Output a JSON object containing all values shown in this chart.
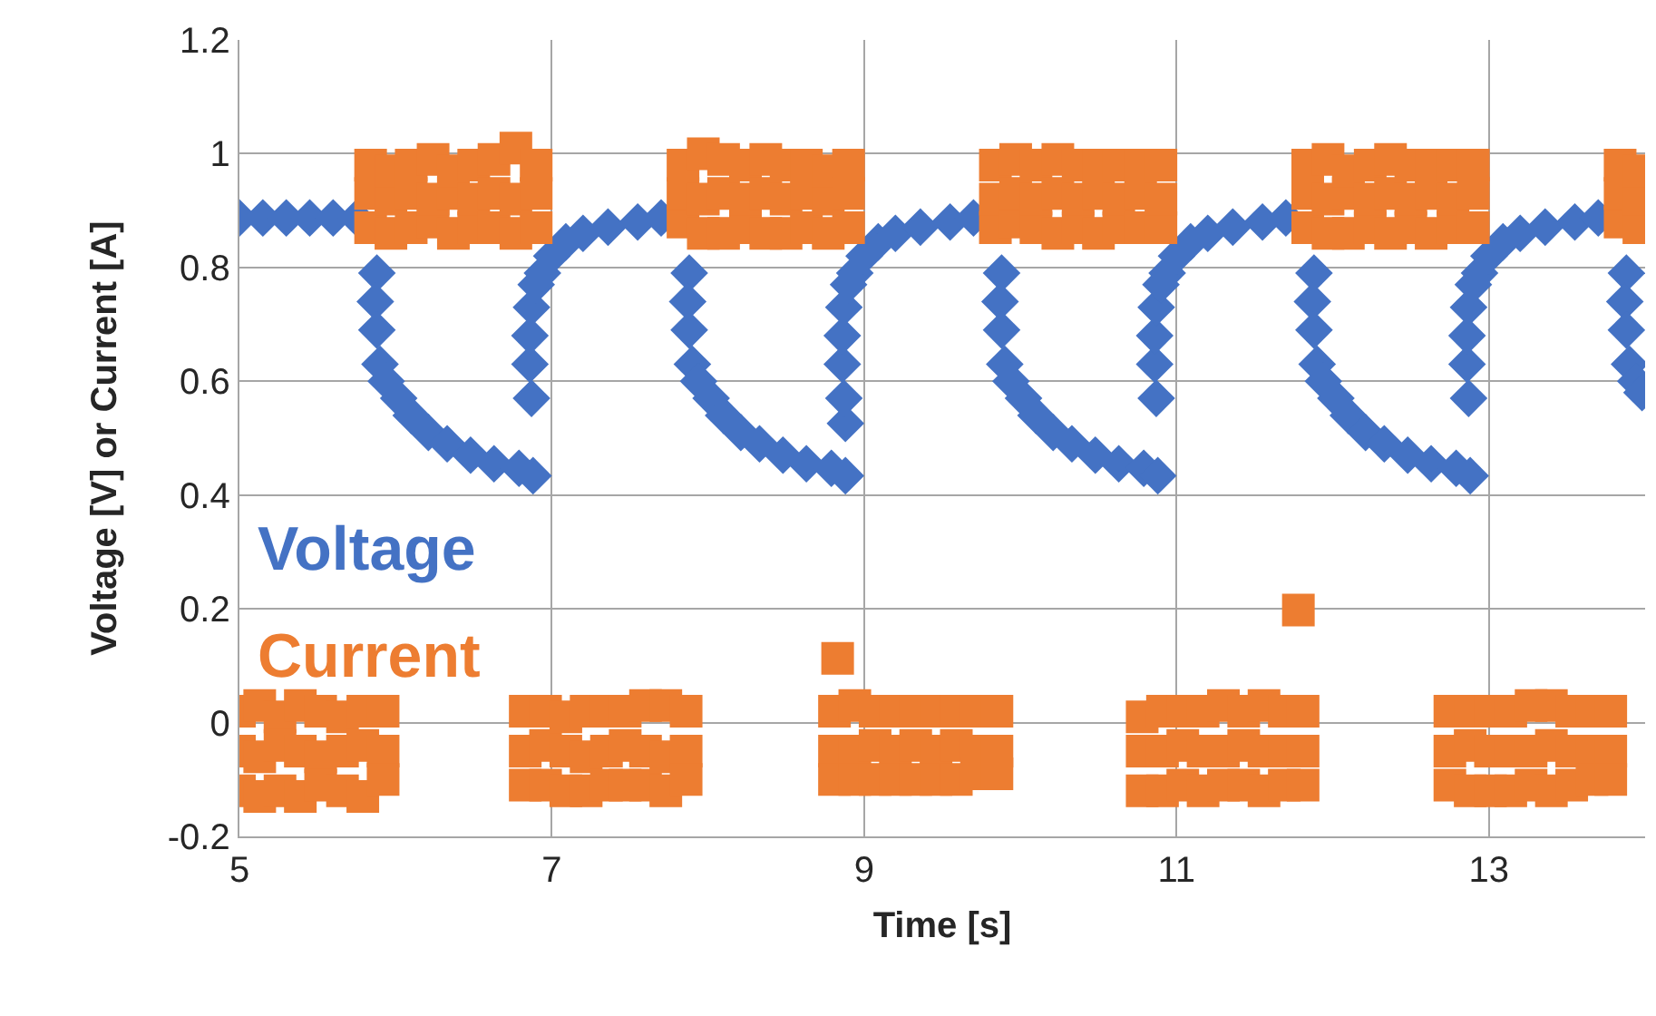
{
  "chart_data": {
    "type": "scatter",
    "xlabel": "Time [s]",
    "ylabel": "Voltage [V] or Current [A]",
    "xlim": [
      5,
      14
    ],
    "xticks": [
      5,
      7,
      9,
      11,
      13
    ],
    "ylim": [
      -0.2,
      1.2
    ],
    "yticks": [
      -0.2,
      0,
      0.2,
      0.4,
      0.6,
      0.8,
      1,
      1.2
    ],
    "grid": true,
    "legend": "left",
    "series": [
      {
        "name": "Voltage",
        "color": "#4472c4",
        "marker": "diamond",
        "x": [
          5.0,
          5.15,
          5.3,
          5.45,
          5.6,
          5.75,
          5.88,
          5.87,
          5.88,
          5.9,
          5.94,
          6.02,
          6.1,
          6.21,
          6.33,
          6.48,
          6.63,
          6.79,
          6.88,
          6.87,
          6.86,
          6.86,
          6.87,
          6.9,
          6.94,
          7.0,
          7.09,
          7.2,
          7.36,
          7.55,
          7.7,
          7.88,
          7.87,
          7.88,
          7.9,
          7.94,
          8.02,
          8.1,
          8.21,
          8.33,
          8.48,
          8.63,
          8.79,
          8.88,
          8.88,
          8.87,
          8.86,
          8.86,
          8.87,
          8.9,
          8.94,
          9.0,
          9.09,
          9.2,
          9.36,
          9.55,
          9.7,
          9.88,
          9.87,
          9.88,
          9.9,
          9.94,
          10.02,
          10.1,
          10.21,
          10.33,
          10.48,
          10.63,
          10.79,
          10.88,
          10.87,
          10.86,
          10.86,
          10.87,
          10.9,
          10.94,
          11.0,
          11.09,
          11.2,
          11.36,
          11.55,
          11.7,
          11.88,
          11.87,
          11.88,
          11.9,
          11.94,
          12.02,
          12.1,
          12.21,
          12.33,
          12.48,
          12.63,
          12.79,
          12.88,
          12.87,
          12.86,
          12.86,
          12.87,
          12.9,
          12.94,
          13.0,
          13.09,
          13.2,
          13.36,
          13.55,
          13.7,
          13.88,
          13.87,
          13.88,
          13.9,
          13.94,
          13.98
        ],
        "values": [
          0.887,
          0.887,
          0.887,
          0.887,
          0.887,
          0.887,
          0.79,
          0.74,
          0.69,
          0.63,
          0.6,
          0.57,
          0.54,
          0.51,
          0.49,
          0.47,
          0.455,
          0.447,
          0.434,
          0.57,
          0.63,
          0.68,
          0.73,
          0.77,
          0.79,
          0.82,
          0.845,
          0.86,
          0.871,
          0.88,
          0.887,
          0.79,
          0.74,
          0.69,
          0.63,
          0.6,
          0.57,
          0.54,
          0.51,
          0.49,
          0.47,
          0.455,
          0.447,
          0.434,
          0.526,
          0.57,
          0.63,
          0.68,
          0.73,
          0.77,
          0.79,
          0.82,
          0.845,
          0.86,
          0.871,
          0.88,
          0.887,
          0.79,
          0.74,
          0.69,
          0.63,
          0.6,
          0.57,
          0.54,
          0.51,
          0.49,
          0.47,
          0.455,
          0.447,
          0.434,
          0.57,
          0.63,
          0.68,
          0.73,
          0.77,
          0.79,
          0.82,
          0.845,
          0.86,
          0.871,
          0.88,
          0.887,
          0.79,
          0.74,
          0.69,
          0.63,
          0.6,
          0.57,
          0.54,
          0.51,
          0.49,
          0.47,
          0.455,
          0.447,
          0.434,
          0.57,
          0.63,
          0.68,
          0.73,
          0.77,
          0.79,
          0.82,
          0.845,
          0.86,
          0.871,
          0.88,
          0.887,
          0.79,
          0.74,
          0.69,
          0.63,
          0.6,
          0.58
        ]
      },
      {
        "name": "Current",
        "color": "#ed7d31",
        "marker": "square",
        "x": [
          5.0,
          5.0,
          5.0,
          5.13,
          5.13,
          5.13,
          5.26,
          5.26,
          5.26,
          5.39,
          5.39,
          5.39,
          5.52,
          5.52,
          5.52,
          5.66,
          5.66,
          5.66,
          5.79,
          5.79,
          5.79,
          5.92,
          5.92,
          5.92,
          5.84,
          5.84,
          5.84,
          5.97,
          5.97,
          5.97,
          6.1,
          6.1,
          6.1,
          6.24,
          6.24,
          6.24,
          6.37,
          6.37,
          6.37,
          6.5,
          6.5,
          6.5,
          6.63,
          6.63,
          6.63,
          6.77,
          6.77,
          6.77,
          6.9,
          6.9,
          6.9,
          6.83,
          6.83,
          6.83,
          6.96,
          6.96,
          6.96,
          7.09,
          7.09,
          7.09,
          7.22,
          7.22,
          7.22,
          7.35,
          7.35,
          7.35,
          7.47,
          7.47,
          7.47,
          7.6,
          7.6,
          7.6,
          7.73,
          7.73,
          7.73,
          7.86,
          7.86,
          7.86,
          7.84,
          7.84,
          7.84,
          7.97,
          7.97,
          7.97,
          8.1,
          8.1,
          8.1,
          8.24,
          8.24,
          8.24,
          8.37,
          8.37,
          8.37,
          8.5,
          8.5,
          8.5,
          8.63,
          8.63,
          8.63,
          8.77,
          8.77,
          8.77,
          8.9,
          8.9,
          8.9,
          8.83,
          8.81,
          8.81,
          8.81,
          8.94,
          8.94,
          8.94,
          9.07,
          9.07,
          9.07,
          9.2,
          9.2,
          9.2,
          9.33,
          9.33,
          9.33,
          9.46,
          9.46,
          9.46,
          9.59,
          9.59,
          9.59,
          9.72,
          9.72,
          9.72,
          9.85,
          9.85,
          9.85,
          9.84,
          9.84,
          9.84,
          9.97,
          9.97,
          9.97,
          10.1,
          10.1,
          10.1,
          10.24,
          10.24,
          10.24,
          10.37,
          10.37,
          10.37,
          10.5,
          10.5,
          10.5,
          10.63,
          10.63,
          10.63,
          10.77,
          10.77,
          10.77,
          10.9,
          10.9,
          10.9,
          10.78,
          10.78,
          10.78,
          10.91,
          10.91,
          10.91,
          11.04,
          11.04,
          11.04,
          11.17,
          11.17,
          11.17,
          11.3,
          11.3,
          11.3,
          11.43,
          11.43,
          11.43,
          11.56,
          11.56,
          11.56,
          11.69,
          11.69,
          11.69,
          11.81,
          11.81,
          11.81,
          11.78,
          11.84,
          11.84,
          11.84,
          11.97,
          11.97,
          11.97,
          12.1,
          12.1,
          12.1,
          12.24,
          12.24,
          12.24,
          12.37,
          12.37,
          12.37,
          12.5,
          12.5,
          12.5,
          12.63,
          12.63,
          12.63,
          12.77,
          12.77,
          12.77,
          12.9,
          12.9,
          12.9,
          12.75,
          12.75,
          12.75,
          12.88,
          12.88,
          12.88,
          13.01,
          13.01,
          13.01,
          13.14,
          13.14,
          13.14,
          13.27,
          13.27,
          13.27,
          13.4,
          13.4,
          13.4,
          13.53,
          13.53,
          13.53,
          13.66,
          13.66,
          13.66,
          13.78,
          13.78,
          13.78,
          13.84,
          13.84,
          13.84,
          13.96,
          13.96,
          13.96
        ],
        "values": [
          0.02,
          -0.05,
          -0.12,
          0.03,
          -0.06,
          -0.13,
          0.01,
          -0.04,
          -0.12,
          0.03,
          -0.05,
          -0.13,
          0.02,
          -0.06,
          -0.11,
          0.01,
          -0.05,
          -0.12,
          0.02,
          -0.04,
          -0.13,
          0.02,
          -0.05,
          -0.1,
          0.87,
          0.93,
          0.98,
          0.86,
          0.92,
          0.97,
          0.87,
          0.93,
          0.98,
          0.88,
          0.92,
          0.99,
          0.86,
          0.93,
          0.97,
          0.87,
          0.92,
          0.98,
          0.87,
          0.93,
          0.99,
          0.86,
          0.92,
          1.01,
          0.87,
          0.93,
          0.98,
          0.02,
          -0.05,
          -0.11,
          0.02,
          -0.04,
          -0.11,
          0.01,
          -0.05,
          -0.12,
          0.02,
          -0.06,
          -0.12,
          0.02,
          -0.05,
          -0.11,
          0.02,
          -0.04,
          -0.11,
          0.03,
          -0.05,
          -0.11,
          0.03,
          -0.06,
          -0.12,
          0.02,
          -0.05,
          -0.1,
          0.88,
          0.93,
          0.98,
          0.86,
          0.92,
          1.0,
          0.86,
          0.93,
          0.99,
          0.87,
          0.92,
          0.98,
          0.86,
          0.93,
          0.99,
          0.86,
          0.92,
          0.98,
          0.87,
          0.93,
          0.98,
          0.86,
          0.92,
          0.97,
          0.87,
          0.93,
          0.98,
          0.113,
          0.02,
          -0.05,
          -0.1,
          0.03,
          -0.05,
          -0.1,
          0.02,
          -0.04,
          -0.1,
          0.02,
          -0.05,
          -0.1,
          0.02,
          -0.04,
          -0.1,
          0.02,
          -0.05,
          -0.1,
          0.02,
          -0.04,
          -0.1,
          0.02,
          -0.05,
          -0.09,
          0.02,
          -0.05,
          -0.09,
          0.87,
          0.92,
          0.98,
          0.88,
          0.93,
          0.99,
          0.87,
          0.92,
          0.98,
          0.86,
          0.93,
          0.99,
          0.87,
          0.92,
          0.98,
          0.86,
          0.93,
          0.98,
          0.87,
          0.92,
          0.98,
          0.87,
          0.93,
          0.98,
          0.87,
          0.92,
          0.98,
          0.01,
          -0.05,
          -0.12,
          0.02,
          -0.05,
          -0.12,
          0.02,
          -0.04,
          -0.11,
          0.02,
          -0.05,
          -0.12,
          0.03,
          -0.05,
          -0.11,
          0.02,
          -0.04,
          -0.11,
          0.03,
          -0.05,
          -0.12,
          0.02,
          -0.05,
          -0.11,
          0.02,
          -0.05,
          -0.11,
          0.198,
          0.87,
          0.93,
          0.98,
          0.86,
          0.92,
          0.99,
          0.86,
          0.93,
          0.97,
          0.87,
          0.92,
          0.98,
          0.86,
          0.93,
          0.99,
          0.87,
          0.92,
          0.98,
          0.86,
          0.93,
          0.98,
          0.87,
          0.92,
          0.98,
          0.87,
          0.93,
          0.98,
          0.02,
          -0.05,
          -0.11,
          0.02,
          -0.04,
          -0.12,
          0.02,
          -0.05,
          -0.12,
          0.02,
          -0.05,
          -0.12,
          0.03,
          -0.05,
          -0.11,
          0.03,
          -0.04,
          -0.12,
          0.02,
          -0.05,
          -0.11,
          0.02,
          -0.05,
          -0.1,
          0.02,
          -0.05,
          -0.1,
          0.88,
          0.93,
          0.98,
          0.87,
          0.92,
          0.97
        ]
      }
    ]
  }
}
